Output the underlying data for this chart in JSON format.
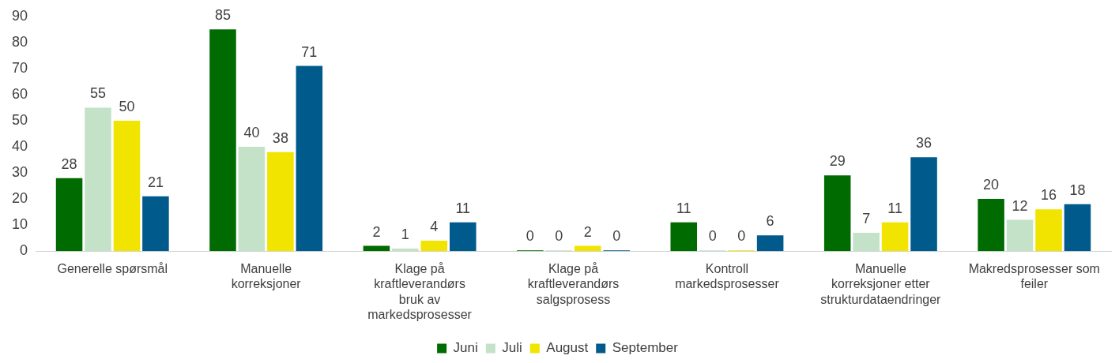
{
  "chart_data": {
    "type": "bar",
    "categories": [
      "Generelle spørsmål",
      "Manuelle korreksjoner",
      "Klage på kraftleverandørs bruk av markedsprosesser",
      "Klage på kraftleverandørs salgsprosess",
      "Kontroll markedsprosesser",
      "Manuelle korreksjoner etter strukturdataendringer",
      "Makredsprosesser som feiler"
    ],
    "series": [
      {
        "name": "Juni",
        "color": "#006b00",
        "values": [
          28,
          85,
          2,
          0,
          11,
          29,
          20
        ]
      },
      {
        "name": "Juli",
        "color": "#c3e2c8",
        "values": [
          55,
          40,
          1,
          0,
          0,
          7,
          12
        ]
      },
      {
        "name": "August",
        "color": "#f0e400",
        "values": [
          50,
          38,
          4,
          2,
          0,
          11,
          16
        ]
      },
      {
        "name": "September",
        "color": "#005a8c",
        "values": [
          21,
          71,
          11,
          0,
          6,
          36,
          18
        ]
      }
    ],
    "ylim": [
      0,
      90
    ],
    "yticks": [
      0,
      10,
      20,
      30,
      40,
      50,
      60,
      70,
      80,
      90
    ],
    "data_labels": true,
    "legend": "bottom",
    "grid": false
  }
}
